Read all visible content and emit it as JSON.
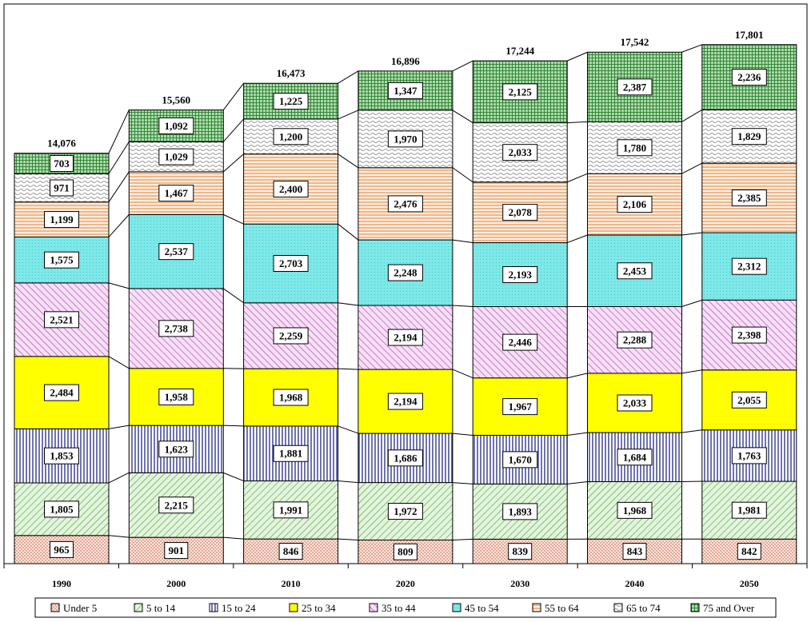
{
  "chart_data": {
    "type": "bar",
    "stacked": true,
    "categories": [
      "1990",
      "2000",
      "2010",
      "2020",
      "2030",
      "2040",
      "2050"
    ],
    "series": [
      {
        "name": "Under 5",
        "values": [
          965,
          901,
          846,
          809,
          839,
          843,
          842
        ],
        "color": "#fbe5d6",
        "pattern": "dots"
      },
      {
        "name": "5 to 14",
        "values": [
          1805,
          2215,
          1991,
          1972,
          1893,
          1968,
          1981
        ],
        "color": "#d9f2d0",
        "pattern": "diag-up"
      },
      {
        "name": "15 to 24",
        "values": [
          1853,
          1623,
          1881,
          1686,
          1670,
          1684,
          1763
        ],
        "color": "#ffffff",
        "pattern": "vertical-navy"
      },
      {
        "name": "25 to 34",
        "values": [
          2484,
          1958,
          1968,
          2194,
          1967,
          2033,
          2055
        ],
        "color": "#ffff00",
        "pattern": "solid"
      },
      {
        "name": "35 to 44",
        "values": [
          2521,
          2738,
          2259,
          2194,
          2446,
          2288,
          2398
        ],
        "color": "#f3d0f3",
        "pattern": "diag-down-purple"
      },
      {
        "name": "45 to 54",
        "values": [
          1575,
          2537,
          2703,
          2248,
          2193,
          2453,
          2312
        ],
        "color": "#aaf0f0",
        "pattern": "cyan-grid"
      },
      {
        "name": "55 to 64",
        "values": [
          1199,
          1467,
          2400,
          2476,
          2078,
          2106,
          2385
        ],
        "color": "#fde5cf",
        "pattern": "horizontal-orange"
      },
      {
        "name": "65 to 74",
        "values": [
          971,
          1029,
          1200,
          1970,
          2033,
          1780,
          1829
        ],
        "color": "#ffffff",
        "pattern": "wave"
      },
      {
        "name": "75 and Over",
        "values": [
          703,
          1092,
          1225,
          1347,
          2125,
          2387,
          2236
        ],
        "color": "#b8e6b8",
        "pattern": "green-grid"
      }
    ],
    "totals": [
      "14,076",
      "15,560",
      "16,473",
      "16,896",
      "17,244",
      "17,542",
      "17,801"
    ],
    "value_labels": [
      [
        "965",
        "901",
        "846",
        "809",
        "839",
        "843",
        "842"
      ],
      [
        "1,805",
        "2,215",
        "1,991",
        "1,972",
        "1,893",
        "1,968",
        "1,981"
      ],
      [
        "1,853",
        "1,623",
        "1,881",
        "1,686",
        "1,670",
        "1,684",
        "1,763"
      ],
      [
        "2,484",
        "1,958",
        "1,968",
        "2,194",
        "1,967",
        "2,033",
        "2,055"
      ],
      [
        "2,521",
        "2,738",
        "2,259",
        "2,194",
        "2,446",
        "2,288",
        "2,398"
      ],
      [
        "1,575",
        "2,537",
        "2,703",
        "2,248",
        "2,193",
        "2,453",
        "2,312"
      ],
      [
        "1,199",
        "1,467",
        "2,400",
        "2,476",
        "2,078",
        "2,106",
        "2,385"
      ],
      [
        "971",
        "1,029",
        "1,200",
        "1,970",
        "2,033",
        "1,780",
        "1,829"
      ],
      [
        "703",
        "1,092",
        "1,225",
        "1,347",
        "2,125",
        "2,387",
        "2,236"
      ]
    ],
    "ylim": [
      0,
      19500
    ],
    "grid": false,
    "legend_position": "bottom",
    "title": "",
    "xlabel": "",
    "ylabel": ""
  }
}
